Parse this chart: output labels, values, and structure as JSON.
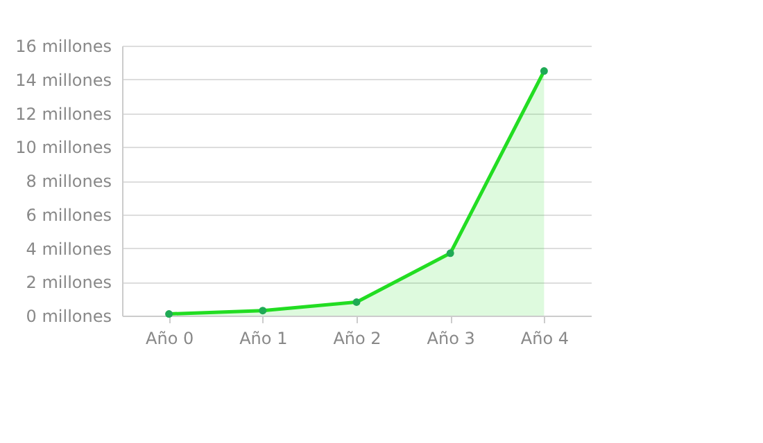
{
  "chart_data": {
    "type": "area",
    "categories": [
      "Año 0",
      "Año 1",
      "Año 2",
      "Año 3",
      "Año 4"
    ],
    "series": [
      {
        "color": "#22dd22",
        "values": [
          0.1,
          0.3,
          0.8,
          3.7,
          14.5
        ]
      }
    ],
    "ylim": [
      0,
      16
    ],
    "yticks": [
      {
        "value": 0,
        "label": "0 millones"
      },
      {
        "value": 2,
        "label": "2 millones"
      },
      {
        "value": 4,
        "label": "4 millones"
      },
      {
        "value": 6,
        "label": "6 millones"
      },
      {
        "value": 8,
        "label": "8 millones"
      },
      {
        "value": 10,
        "label": "10 millones"
      },
      {
        "value": 12,
        "label": "12 millones"
      },
      {
        "value": 14,
        "label": "14 millones"
      },
      {
        "value": 16,
        "label": "16 millones"
      }
    ],
    "grid": "y",
    "marker": "circle",
    "line_style": "solid"
  }
}
